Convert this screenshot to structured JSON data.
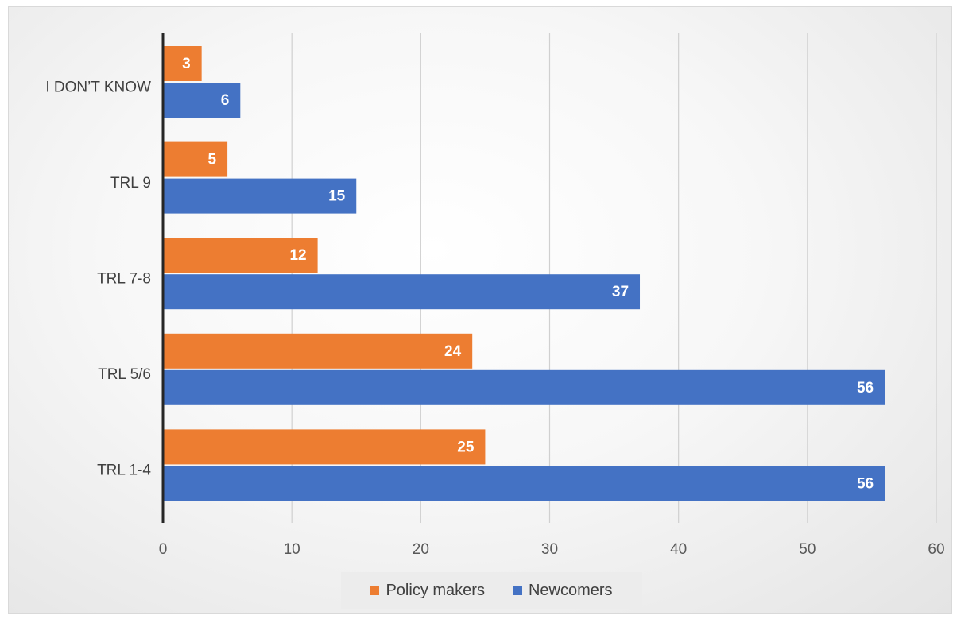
{
  "chart_data": {
    "type": "bar",
    "orientation": "horizontal",
    "categories": [
      "I DON’T KNOW",
      "TRL 9",
      "TRL 7-8",
      "TRL 5/6",
      "TRL 1-4"
    ],
    "series": [
      {
        "name": "Policy makers",
        "color": "#ED7D31",
        "values": [
          3,
          5,
          12,
          24,
          25
        ]
      },
      {
        "name": "Newcomers",
        "color": "#4472C4",
        "values": [
          6,
          15,
          37,
          56,
          56
        ]
      }
    ],
    "xlim": [
      0,
      60
    ],
    "xticks": [
      0,
      10,
      20,
      30,
      40,
      50,
      60
    ],
    "grid": "vertical",
    "legend_position": "bottom",
    "data_labels": true
  }
}
